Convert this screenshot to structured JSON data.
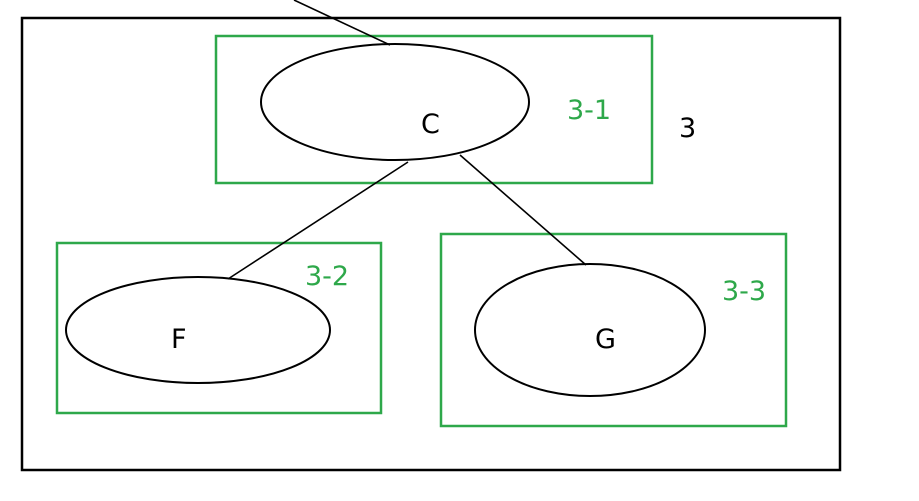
{
  "colors": {
    "edge": "#000000",
    "node_outline": "#000000",
    "group_outline": "#2ea84a",
    "group_label": "#2ea84a",
    "outer_outline": "#000000"
  },
  "outer_group": {
    "label": "3"
  },
  "groups": [
    {
      "id": "3-1",
      "label": "3-1"
    },
    {
      "id": "3-2",
      "label": "3-2"
    },
    {
      "id": "3-3",
      "label": "3-3"
    }
  ],
  "nodes": [
    {
      "id": "C",
      "label": "C"
    },
    {
      "id": "F",
      "label": "F"
    },
    {
      "id": "G",
      "label": "G"
    }
  ],
  "edges": [
    {
      "from": "external",
      "to": "C"
    },
    {
      "from": "C",
      "to": "F"
    },
    {
      "from": "C",
      "to": "G"
    }
  ]
}
